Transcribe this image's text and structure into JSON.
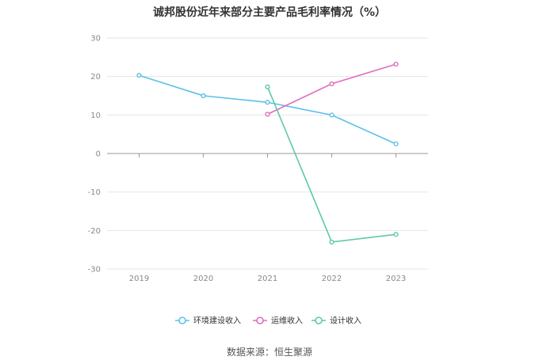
{
  "chart_data": {
    "type": "line",
    "title": "诚邦股份近年来部分主要产品毛利率情况（%）",
    "categories": [
      "2019",
      "2020",
      "2021",
      "2022",
      "2023"
    ],
    "series": [
      {
        "name": "环境建设收入",
        "color": "#5bc0eb",
        "values": [
          20.3,
          15.0,
          13.3,
          10.0,
          2.5
        ]
      },
      {
        "name": "运维收入",
        "color": "#e06bbc",
        "values": [
          null,
          null,
          10.2,
          18.1,
          23.2
        ]
      },
      {
        "name": "设计收入",
        "color": "#5cc9a7",
        "values": [
          null,
          null,
          17.3,
          -23.0,
          -21.0
        ]
      }
    ],
    "ylim": [
      -30,
      30
    ],
    "yticks": [
      30,
      20,
      10,
      0,
      -10,
      -20,
      -30
    ],
    "grid": true,
    "legend": "bottom"
  },
  "source_text": "数据来源：恒生聚源"
}
